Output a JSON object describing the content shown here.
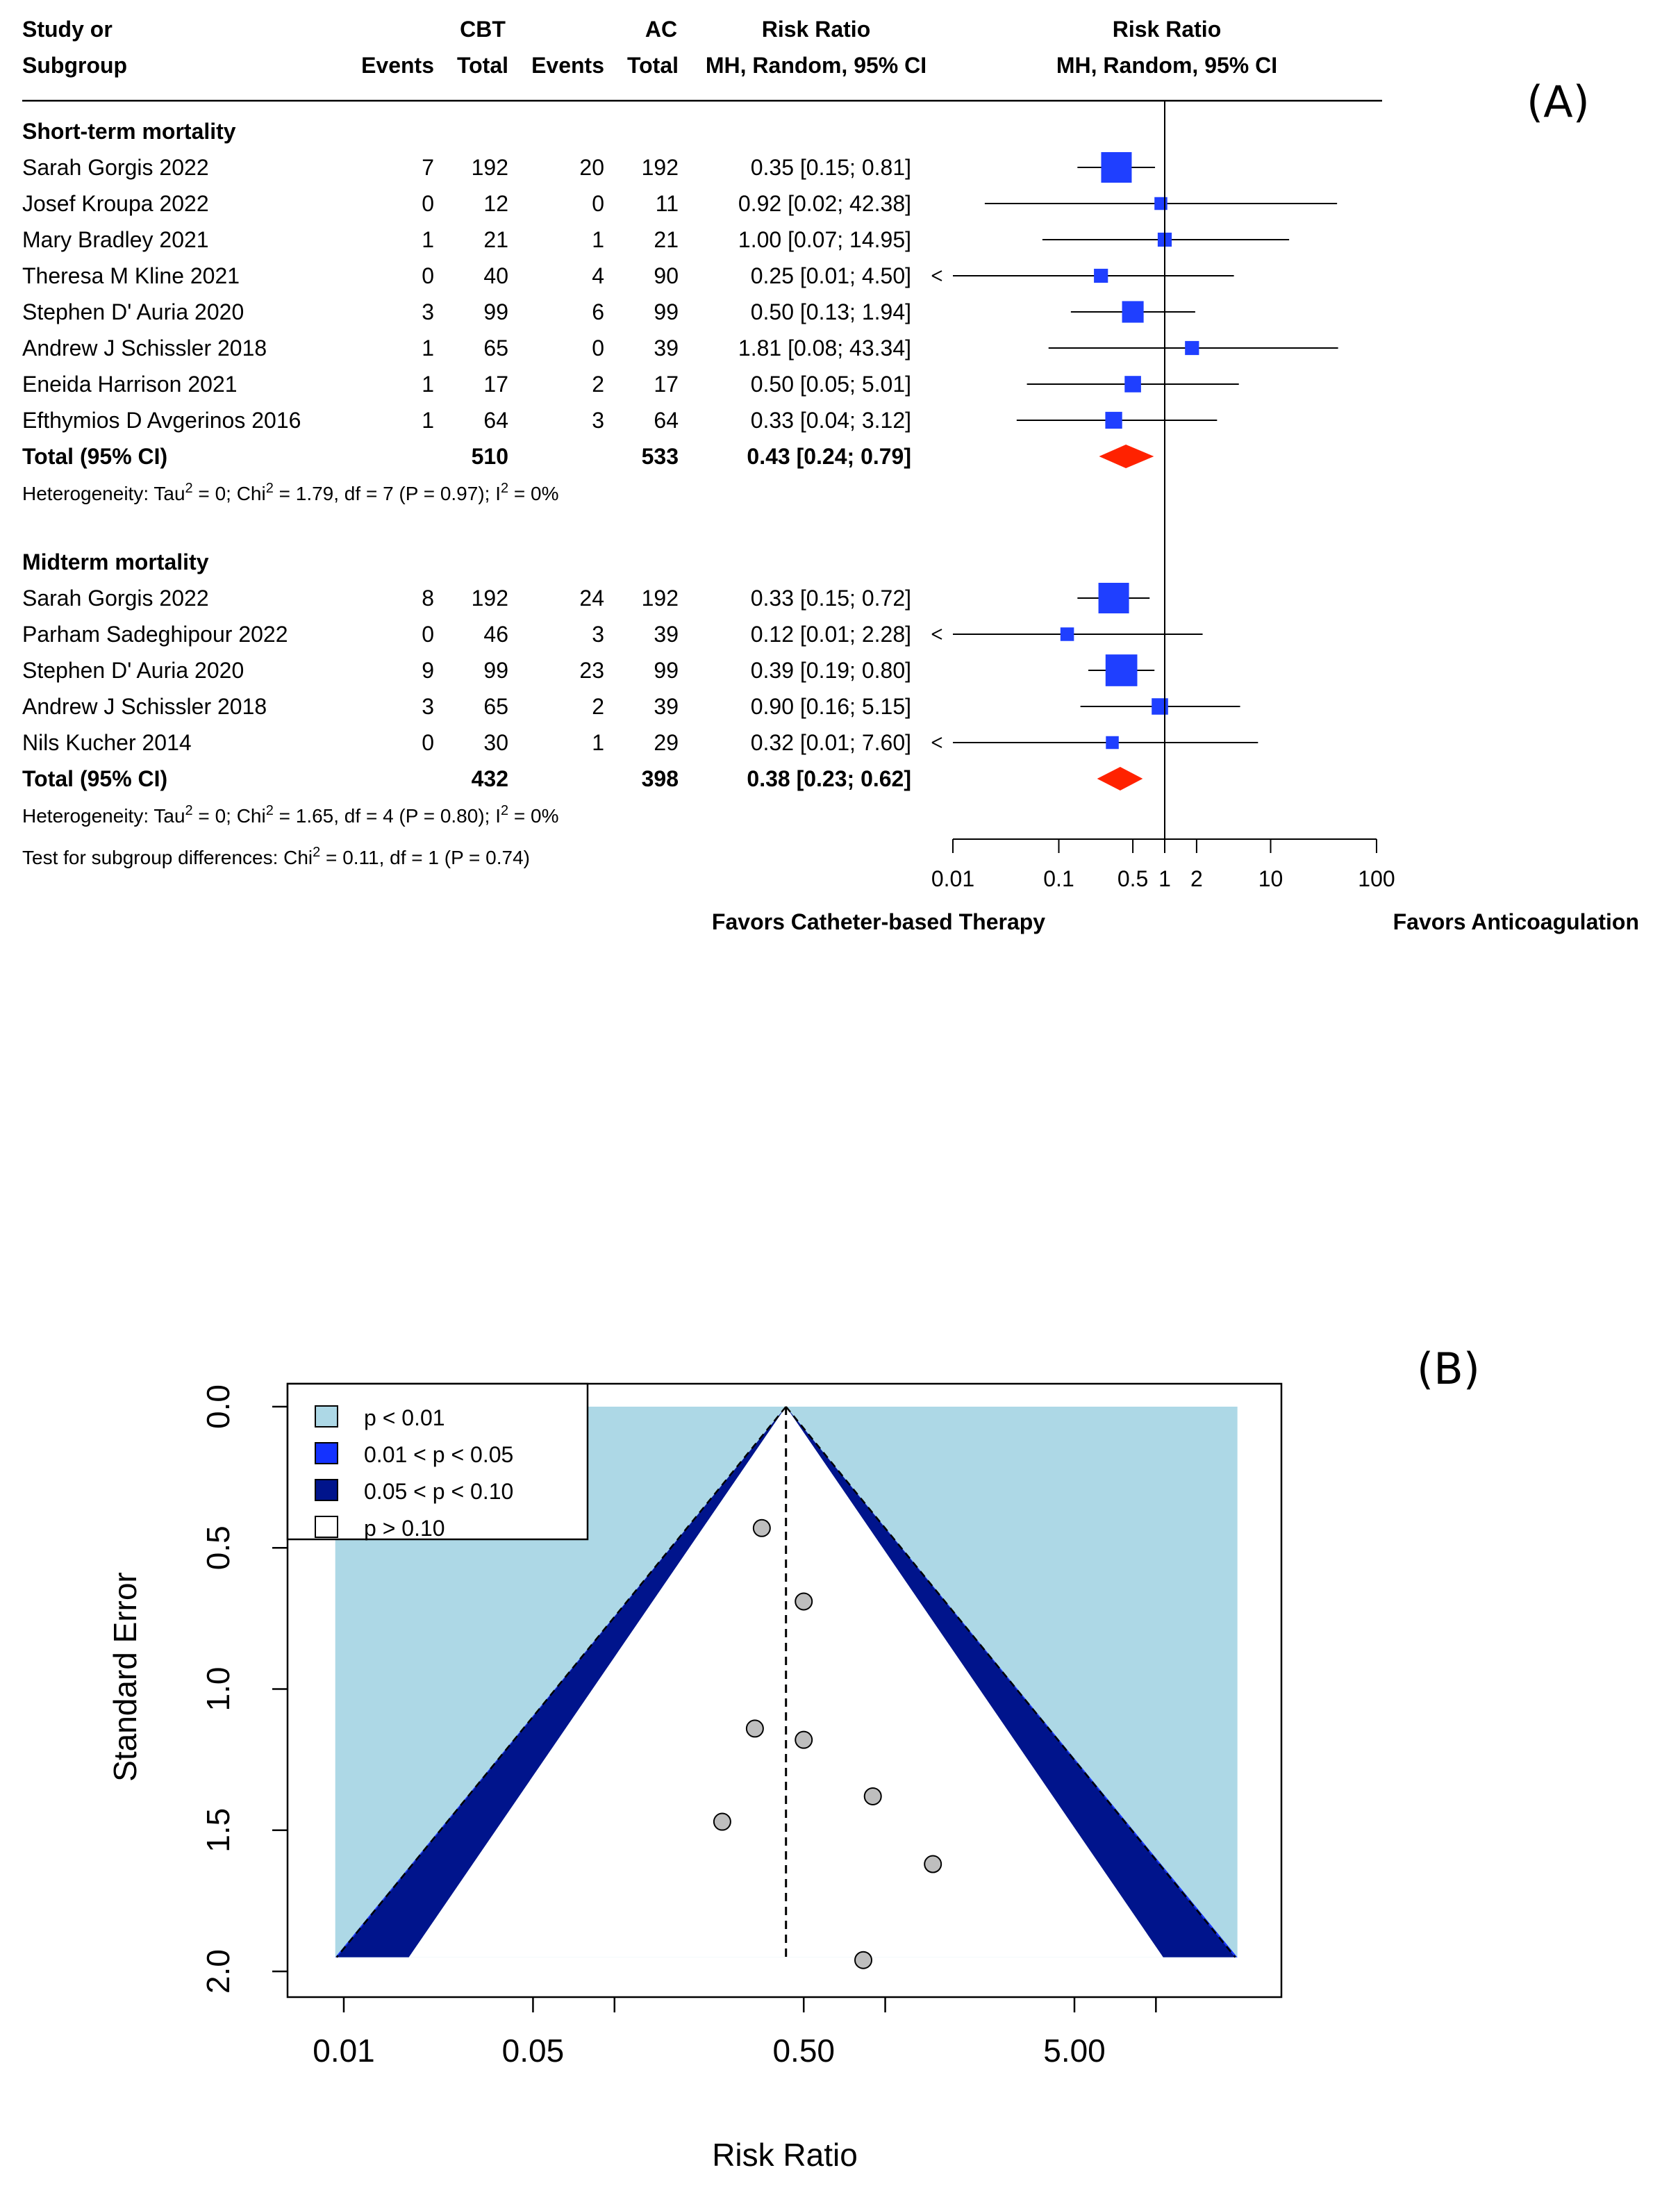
{
  "chart_data": [
    {
      "type": "forest",
      "panel_label": "(A)",
      "headers": {
        "study_line1": "Study or",
        "study_line2": "Subgroup",
        "group1": "CBT",
        "group2": "AC",
        "events": "Events",
        "total": "Total",
        "rr_title": "Risk Ratio",
        "rr_method": "MH, Random, 95% CI",
        "plot_title": "Risk Ratio",
        "plot_method": "MH, Random, 95% CI"
      },
      "subgroups": [
        {
          "title": "Short-term mortality",
          "studies": [
            {
              "name": "Sarah Gorgis 2022",
              "e1": "7",
              "t1": "192",
              "e2": "20",
              "t2": "192",
              "ci_text": "0.35 [0.15;  0.81]",
              "rr": 0.35,
              "lo": 0.15,
              "hi": 0.81,
              "weight": 1.0
            },
            {
              "name": "Josef Kroupa 2022",
              "e1": "0",
              "t1": "12",
              "e2": "0",
              "t2": "11",
              "ci_text": "0.92 [0.02; 42.38]",
              "rr": 0.92,
              "lo": 0.02,
              "hi": 42.38,
              "weight": 0.25
            },
            {
              "name": "Mary Bradley 2021",
              "e1": "1",
              "t1": "21",
              "e2": "1",
              "t2": "21",
              "ci_text": "1.00 [0.07; 14.95]",
              "rr": 1.0,
              "lo": 0.07,
              "hi": 14.95,
              "weight": 0.3
            },
            {
              "name": "Theresa M Kline 2021",
              "e1": "0",
              "t1": "40",
              "e2": "4",
              "t2": "90",
              "ci_text": "0.25 [0.01;  4.50]",
              "rr": 0.25,
              "lo": 0.01,
              "hi": 4.5,
              "weight": 0.3
            },
            {
              "name": "Stephen D' Auria 2020",
              "e1": "3",
              "t1": "99",
              "e2": "6",
              "t2": "99",
              "ci_text": "0.50 [0.13;  1.94]",
              "rr": 0.5,
              "lo": 0.13,
              "hi": 1.94,
              "weight": 0.62
            },
            {
              "name": "Andrew J Schissler 2018",
              "e1": "1",
              "t1": "65",
              "e2": "0",
              "t2": "39",
              "ci_text": "1.81 [0.08; 43.34]",
              "rr": 1.81,
              "lo": 0.08,
              "hi": 43.34,
              "weight": 0.3
            },
            {
              "name": "Eneida Harrison 2021",
              "e1": "1",
              "t1": "17",
              "e2": "2",
              "t2": "17",
              "ci_text": "0.50 [0.05;  5.01]",
              "rr": 0.5,
              "lo": 0.05,
              "hi": 5.01,
              "weight": 0.4
            },
            {
              "name": "Efthymios D Avgerinos 2016",
              "e1": "1",
              "t1": "64",
              "e2": "3",
              "t2": "64",
              "ci_text": "0.33 [0.04;  3.12]",
              "rr": 0.33,
              "lo": 0.04,
              "hi": 3.12,
              "weight": 0.42
            }
          ],
          "total": {
            "label": "Total (95% CI)",
            "t1": "510",
            "t2": "533",
            "ci_text": "0.43 [0.24;  0.79]",
            "rr": 0.43,
            "lo": 0.24,
            "hi": 0.79
          },
          "heterogeneity": {
            "pre": "Heterogeneity: Tau",
            "mid": " = 0; Chi",
            "post": " = 1.79, df = 7 (P = 0.97); I",
            "end": " = 0%"
          }
        },
        {
          "title": "Midterm mortality",
          "studies": [
            {
              "name": "Sarah Gorgis 2022",
              "e1": "8",
              "t1": "192",
              "e2": "24",
              "t2": "192",
              "ci_text": "0.33 [0.15;  0.72]",
              "rr": 0.33,
              "lo": 0.15,
              "hi": 0.72,
              "weight": 1.0
            },
            {
              "name": "Parham Sadeghipour 2022",
              "e1": "0",
              "t1": "46",
              "e2": "3",
              "t2": "39",
              "ci_text": "0.12 [0.01;  2.28]",
              "rr": 0.12,
              "lo": 0.01,
              "hi": 2.28,
              "weight": 0.28
            },
            {
              "name": "Stephen D' Auria 2020",
              "e1": "9",
              "t1": "99",
              "e2": "23",
              "t2": "99",
              "ci_text": "0.39 [0.19;  0.80]",
              "rr": 0.39,
              "lo": 0.19,
              "hi": 0.8,
              "weight": 1.05
            },
            {
              "name": "Andrew J Schissler 2018",
              "e1": "3",
              "t1": "65",
              "e2": "2",
              "t2": "39",
              "ci_text": "0.90 [0.16;  5.15]",
              "rr": 0.9,
              "lo": 0.16,
              "hi": 5.15,
              "weight": 0.4
            },
            {
              "name": "Nils Kucher 2014",
              "e1": "0",
              "t1": "30",
              "e2": "1",
              "t2": "29",
              "ci_text": "0.32 [0.01;  7.60]",
              "rr": 0.32,
              "lo": 0.01,
              "hi": 7.6,
              "weight": 0.25
            }
          ],
          "total": {
            "label": "Total (95% CI)",
            "t1": "432",
            "t2": "398",
            "ci_text": "0.38 [0.23;  0.62]",
            "rr": 0.38,
            "lo": 0.23,
            "hi": 0.62
          },
          "heterogeneity": {
            "pre": "Heterogeneity: Tau",
            "mid": " = 0; Chi",
            "post": " = 1.65, df = 4 (P = 0.80); I",
            "end": " = 0%"
          }
        }
      ],
      "subgroup_test": {
        "pre": "Test for subgroup differences: Chi",
        "post": " = 0.11, df = 1 (P = 0.74)"
      },
      "superscript": "2",
      "x_axis": {
        "scale": "log",
        "ticks": [
          0.01,
          0.1,
          0.5,
          1,
          2,
          10,
          100
        ],
        "tick_labels": [
          "0.01",
          "0.1",
          "0.5",
          "1",
          "2",
          "10",
          "100"
        ],
        "range": [
          0.01,
          100
        ]
      },
      "favors_left": "Favors Catheter-based Therapy",
      "favors_right": "Favors Anticoagulation",
      "colors": {
        "square": "#1f3fff",
        "diamond": "#ff2200"
      }
    },
    {
      "type": "scatter",
      "subtype": "contour-enhanced funnel plot",
      "panel_label": "(B)",
      "xlabel": "Risk Ratio",
      "ylabel": "Standard Error",
      "x_scale": "log",
      "x_ticks": [
        0.01,
        0.05,
        0.5,
        5.0
      ],
      "x_tick_labels": [
        "0.01",
        "0.05",
        "0.50",
        "5.00"
      ],
      "x_minor_ticks": [
        0.1,
        1,
        10
      ],
      "y_ticks": [
        0.0,
        0.5,
        1.0,
        1.5,
        2.0
      ],
      "y_tick_labels": [
        "0.0",
        "0.5",
        "1.0",
        "1.5",
        "2.0"
      ],
      "ylim": [
        0,
        1.95
      ],
      "y_reversed": true,
      "pooled_estimate": 0.43,
      "legend": {
        "placement": "top-left",
        "entries": [
          {
            "label": "p < 0.01",
            "color": "#add8e6"
          },
          {
            "label": "0.01 < p < 0.05",
            "color": "#1432ff"
          },
          {
            "label": "0.05 < p < 0.10",
            "color": "#00148c"
          },
          {
            "label": "p > 0.10",
            "color": "#ffffff"
          }
        ]
      },
      "points": [
        {
          "rr": 0.35,
          "se": 0.43
        },
        {
          "rr": 0.5,
          "se": 0.69
        },
        {
          "rr": 0.33,
          "se": 1.14
        },
        {
          "rr": 0.5,
          "se": 1.18
        },
        {
          "rr": 0.9,
          "se": 1.38
        },
        {
          "rr": 0.25,
          "se": 1.47
        },
        {
          "rr": 1.5,
          "se": 1.62
        },
        {
          "rr": 0.83,
          "se": 1.96
        }
      ],
      "point_color": "#bebebe"
    }
  ]
}
